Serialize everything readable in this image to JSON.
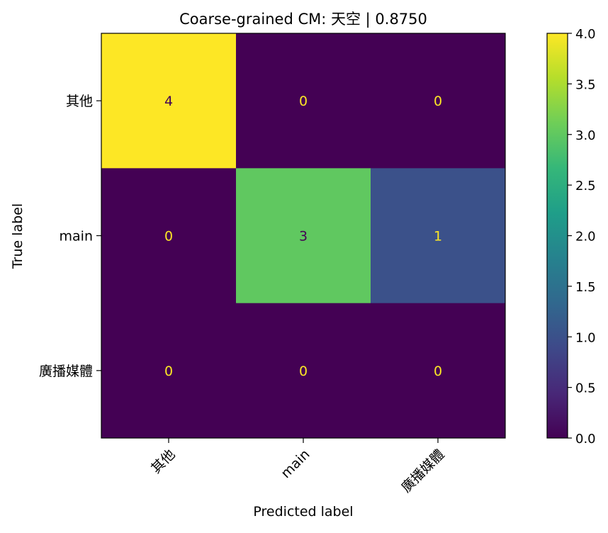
{
  "chart_data": {
    "type": "heatmap",
    "title": "Coarse-grained CM: 天空 | 0.8750",
    "xlabel": "Predicted label",
    "ylabel": "True label",
    "x_categories": [
      "其他",
      "main",
      "廣播媒體"
    ],
    "y_categories": [
      "其他",
      "main",
      "廣播媒體"
    ],
    "values": [
      [
        4,
        0,
        0
      ],
      [
        0,
        3,
        1
      ],
      [
        0,
        0,
        0
      ]
    ],
    "colormap": "viridis",
    "vmin": 0.0,
    "vmax": 4.0,
    "colorbar_ticks": [
      "0.0",
      "0.5",
      "1.0",
      "1.5",
      "2.0",
      "2.5",
      "3.0",
      "3.5",
      "4.0"
    ],
    "grid": false,
    "text_colors": {
      "on_dark": "#fde725",
      "on_light": "#440154"
    }
  }
}
